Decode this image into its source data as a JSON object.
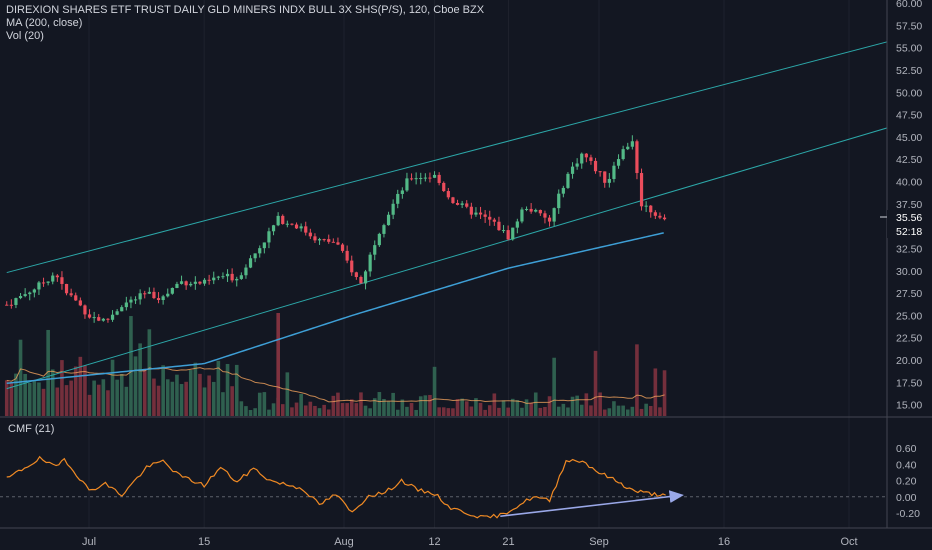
{
  "header": {
    "title": "DIREXION SHARES ETF TRUST DAILY GLD MINERS INDX BULL 3X SHS(P/S), 120, Cboe BZX",
    "indicator_ma": "MA (200, close)",
    "indicator_vol": "Vol (20)"
  },
  "cmf_panel": {
    "title": "CMF (21)"
  },
  "badges": {
    "price": "35.56",
    "countdown": "52:18"
  },
  "colors": {
    "background": "#131722",
    "up_candle": "#53b987",
    "down_candle": "#eb4d5c",
    "vol_up": "#336854",
    "vol_down": "#7f323f",
    "channel": "#2ca7a8",
    "ma_line": "#3e9fd6",
    "cmf_line": "#f08a24",
    "trend_arrow": "#9aa8e8",
    "grid": "#1e222d"
  },
  "chart_data": [
    {
      "type": "candlestick",
      "title": "DIREXION SHARES ETF TRUST DAILY GLD MINERS INDX BULL 3X SHS(P/S), 120, Cboe BZX",
      "timeframe": "120",
      "exchange": "Cboe BZX",
      "y_axis": {
        "side": "right",
        "ylim": [
          12.5,
          60.0
        ],
        "ticks": [
          "15.00",
          "17.50",
          "20.00",
          "22.50",
          "25.00",
          "27.50",
          "30.00",
          "32.50",
          "35.00",
          "37.50",
          "40.00",
          "42.50",
          "45.00",
          "47.50",
          "50.00",
          "52.50",
          "55.00",
          "57.50",
          "60.00"
        ]
      },
      "x_axis": {
        "ticks": [
          "Jul",
          "15",
          "Aug",
          "12",
          "21",
          "Sep",
          "16",
          "Oct"
        ]
      },
      "grid": false,
      "last_price": 35.56,
      "close_path": [
        [
          "Jun 21",
          26.2
        ],
        [
          "Jun 25",
          28.4
        ],
        [
          "Jun 27",
          29.8
        ],
        [
          "Jun 28",
          27.6
        ],
        [
          "Jun 29",
          27.0
        ],
        [
          "Jul 1",
          25.0
        ],
        [
          "Jul 3",
          24.3
        ],
        [
          "Jul 5",
          26.2
        ],
        [
          "Jul 8",
          27.4
        ],
        [
          "Jul 10",
          27.0
        ],
        [
          "Jul 12",
          28.8
        ],
        [
          "Jul 15",
          28.6
        ],
        [
          "Jul 17",
          29.4
        ],
        [
          "Jul 19",
          29.2
        ],
        [
          "Jul 22",
          33.0
        ],
        [
          "Jul 24",
          35.8
        ],
        [
          "Jul 26",
          35.2
        ],
        [
          "Jul 29",
          33.4
        ],
        [
          "Jul 31",
          33.2
        ],
        [
          "Aug 2",
          30.0
        ],
        [
          "Aug 3",
          28.4
        ],
        [
          "Aug 5",
          34.0
        ],
        [
          "Aug 7",
          37.5
        ],
        [
          "Aug 9",
          40.5
        ],
        [
          "Aug 12",
          40.6
        ],
        [
          "Aug 14",
          38.0
        ],
        [
          "Aug 16",
          36.8
        ],
        [
          "Aug 19",
          35.5
        ],
        [
          "Aug 21",
          33.8
        ],
        [
          "Aug 23",
          37.3
        ],
        [
          "Aug 26",
          35.5
        ],
        [
          "Aug 28",
          40.5
        ],
        [
          "Aug 30",
          43.2
        ],
        [
          "Sep 2",
          39.8
        ],
        [
          "Sep 3",
          42.5
        ],
        [
          "Sep 5",
          44.7
        ],
        [
          "Sep 6",
          37.6
        ],
        [
          "Sep 9",
          35.56
        ]
      ],
      "ma_200": [
        [
          "Jun 21",
          17.4
        ],
        [
          "Jul 15",
          19.6
        ],
        [
          "Aug 2",
          25.0
        ],
        [
          "Aug 21",
          30.3
        ],
        [
          "Sep 9",
          34.3
        ]
      ],
      "channel_upper": [
        [
          "Jun 21",
          29.8
        ],
        [
          "Oct 7",
          56.0
        ]
      ],
      "channel_lower": [
        [
          "Jun 21",
          16.8
        ],
        [
          "Oct 7",
          46.4
        ]
      ],
      "volume_ma_20": "orange line overlaid on volume bars"
    },
    {
      "type": "line",
      "title": "CMF (21)",
      "y_axis": {
        "side": "right",
        "ylim": [
          -0.3,
          0.65
        ],
        "ticks": [
          "-0.20",
          "0.00",
          "0.20",
          "0.40",
          "0.60"
        ]
      },
      "zero_line": "dashed",
      "series": [
        {
          "name": "CMF (21)",
          "values": [
            [
              "Jun 21",
              0.22
            ],
            [
              "Jun 25",
              0.47
            ],
            [
              "Jun 27",
              0.36
            ],
            [
              "Jun 28",
              0.47
            ],
            [
              "Jul 1",
              0.08
            ],
            [
              "Jul 3",
              0.16
            ],
            [
              "Jul 5",
              0.02
            ],
            [
              "Jul 8",
              0.36
            ],
            [
              "Jul 10",
              0.44
            ],
            [
              "Jul 12",
              0.26
            ],
            [
              "Jul 15",
              0.14
            ],
            [
              "Jul 17",
              0.36
            ],
            [
              "Jul 19",
              0.18
            ],
            [
              "Jul 21",
              0.35
            ],
            [
              "Jul 23",
              0.2
            ],
            [
              "Jul 25",
              0.15
            ],
            [
              "Jul 27",
              0.1
            ],
            [
              "Jul 29",
              -0.1
            ],
            [
              "Jul 31",
              0.03
            ],
            [
              "Aug 2",
              -0.2
            ],
            [
              "Aug 4",
              0.02
            ],
            [
              "Aug 6",
              0.05
            ],
            [
              "Aug 8",
              0.2
            ],
            [
              "Aug 10",
              0.08
            ],
            [
              "Aug 12",
              0.04
            ],
            [
              "Aug 14",
              -0.14
            ],
            [
              "Aug 16",
              -0.2
            ],
            [
              "Aug 18",
              -0.26
            ],
            [
              "Aug 20",
              -0.23
            ],
            [
              "Aug 22",
              -0.12
            ],
            [
              "Aug 24",
              0.0
            ],
            [
              "Aug 26",
              -0.05
            ],
            [
              "Aug 28",
              0.45
            ],
            [
              "Aug 30",
              0.44
            ],
            [
              "Sep 1",
              0.3
            ],
            [
              "Sep 3",
              0.2
            ],
            [
              "Sep 5",
              0.08
            ],
            [
              "Sep 7",
              0.04
            ],
            [
              "Sep 9",
              0.02
            ]
          ]
        }
      ],
      "trend_arrow": "rising arrow drawn under CMF from Aug 20 to Sep 11"
    }
  ]
}
